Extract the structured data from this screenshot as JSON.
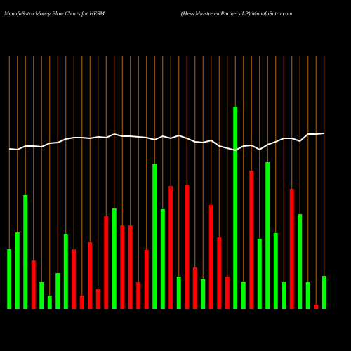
{
  "chart_data": {
    "type": "bar",
    "title": "MunafaSutra  Money Flow  Charts for HESM",
    "subtitle": "(Hess Midstream Partners LP) MunafaSutra.com",
    "categories": [
      null,
      null,
      null,
      null,
      null,
      null,
      null,
      null,
      null,
      null,
      null,
      null,
      null,
      null,
      null,
      null,
      null,
      null,
      null,
      null,
      null,
      null,
      null,
      null,
      null,
      null,
      null,
      null,
      null,
      null,
      null,
      null,
      null,
      null,
      null,
      null,
      null,
      null,
      null,
      null
    ],
    "series": [
      {
        "type": "bar",
        "values": [
          85,
          109,
          162,
          69,
          38,
          19,
          51,
          106,
          85,
          19,
          95,
          28,
          132,
          143,
          119,
          119,
          38,
          84,
          206,
          142,
          175,
          46,
          176,
          59,
          42,
          148,
          102,
          46,
          288,
          39,
          197,
          100,
          209,
          108,
          38,
          171,
          135,
          38,
          6,
          47
        ],
        "colors": [
          "#00ff00",
          "#00ff00",
          "#00ff00",
          "#ff0000",
          "#00ff00",
          "#00ff00",
          "#00ff00",
          "#00ff00",
          "#ff0000",
          "#ff0000",
          "#ff0000",
          "#ff0000",
          "#ff0000",
          "#00ff00",
          "#ff0000",
          "#ff0000",
          "#ff0000",
          "#ff0000",
          "#00ff00",
          "#00ff00",
          "#ff0000",
          "#00ff00",
          "#ff0000",
          "#ff0000",
          "#00ff00",
          "#ff0000",
          "#ff0000",
          "#ff0000",
          "#00ff00",
          "#00ff00",
          "#ff0000",
          "#00ff00",
          "#00ff00",
          "#00ff00",
          "#00ff00",
          "#ff0000",
          "#00ff00",
          "#00ff00",
          "#ff0000",
          "#00ff00"
        ]
      },
      {
        "type": "line",
        "color": "#ffffff",
        "values": [
          228,
          227,
          232,
          232,
          231,
          236,
          237,
          242,
          244,
          244,
          243,
          245,
          244,
          249,
          246,
          246,
          245,
          244,
          241,
          246,
          243,
          247,
          243,
          238,
          237,
          240,
          232,
          229,
          226,
          232,
          233,
          227,
          234,
          238,
          243,
          243,
          239,
          249,
          249,
          250
        ]
      }
    ],
    "ylim": [
      0,
      360
    ],
    "vline_color": "#b5600c"
  }
}
